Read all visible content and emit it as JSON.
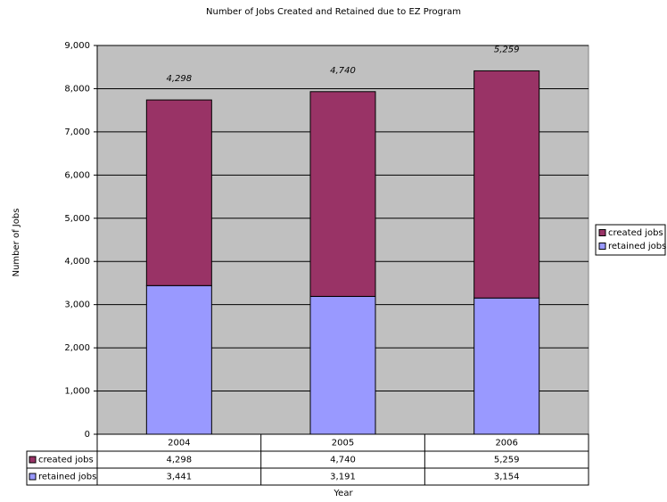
{
  "chart_data": {
    "type": "stacked_bar",
    "title": "Number of Jobs Created and Retained due to EZ Program",
    "x_label": "Year",
    "y_label": "Number of Jobs",
    "categories": [
      "2004",
      "2005",
      "2006"
    ],
    "series": [
      {
        "name": "created jobs",
        "color": "#993366",
        "values": [
          4298,
          4740,
          5259
        ],
        "value_labels": [
          "4,298",
          "4,740",
          "5,259"
        ]
      },
      {
        "name": "retained jobs",
        "color": "#9999ff",
        "values": [
          3441,
          3191,
          3154
        ],
        "value_labels": [
          "3,441",
          "3,191",
          "3,154"
        ]
      }
    ],
    "ylim": [
      0,
      9000
    ],
    "yticks": [
      0,
      {
        "value": 1000,
        "label": "1,000"
      },
      {
        "value": 2000,
        "label": "2,000"
      },
      {
        "value": 3000,
        "label": "3,000"
      },
      {
        "value": 4000,
        "label": "4,000"
      },
      {
        "value": 5000,
        "label": "5,000"
      },
      {
        "value": 6000,
        "label": "6,000"
      },
      {
        "value": 7000,
        "label": "7,000"
      },
      {
        "value": 8000,
        "label": "8,000"
      },
      {
        "value": 9000,
        "label": "9,000"
      }
    ],
    "grid": true,
    "legend": "right",
    "plot_background": "#c0c0c0"
  }
}
